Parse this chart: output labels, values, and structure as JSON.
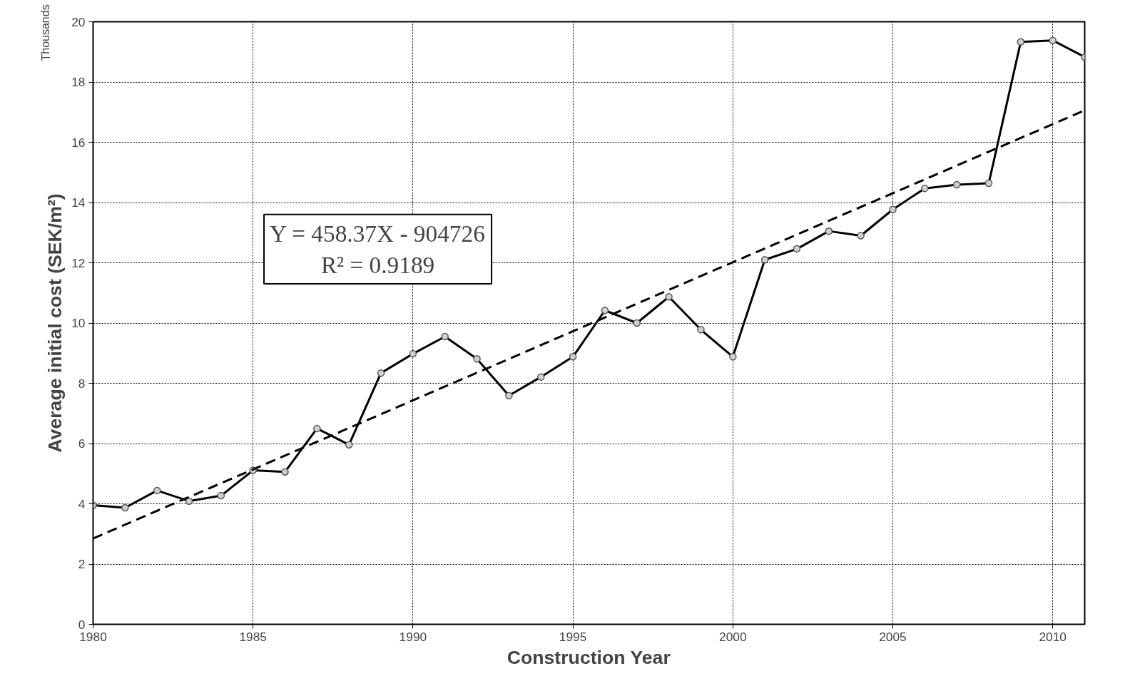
{
  "chart_data": {
    "type": "line",
    "xlabel": "Construction Year",
    "ylabel": "Average initial cost (SEK/m²)",
    "annotations": [
      "Thousands",
      "Y = 458.37X - 904726\nR² = 0.9189"
    ],
    "series": [
      {
        "color": "#000000",
        "marker": "circle",
        "line_style": "solid",
        "x": [
          1980,
          1981,
          1982,
          1983,
          1984,
          1985,
          1986,
          1987,
          1988,
          1989,
          1990,
          1991,
          1992,
          1993,
          1994,
          1995,
          1996,
          1997,
          1998,
          1999,
          2000,
          2001,
          2002,
          2003,
          2004,
          2005,
          2006,
          2007,
          2008,
          2009,
          2010,
          2011
        ],
        "values": [
          3.95,
          3.87,
          4.44,
          4.09,
          4.27,
          5.11,
          5.06,
          6.5,
          5.96,
          8.34,
          8.98,
          9.55,
          8.81,
          7.59,
          8.21,
          8.88,
          10.42,
          10.0,
          10.87,
          9.78,
          8.88,
          12.1,
          12.46,
          13.05,
          12.9,
          13.77,
          14.47,
          14.59,
          14.64,
          19.33,
          19.38,
          18.83
        ]
      },
      {
        "color": "#000000",
        "marker": "none",
        "line_style": "dashed",
        "x": [
          1980,
          2011
        ],
        "values": [
          2.85,
          17.06
        ]
      }
    ],
    "xlim": [
      1980,
      2011
    ],
    "ylim": [
      0,
      20
    ],
    "xticks": [
      1980,
      1985,
      1990,
      1995,
      2000,
      2005,
      2010
    ],
    "yticks": [
      0,
      2,
      4,
      6,
      8,
      10,
      12,
      14,
      16,
      18,
      20
    ],
    "grid": true
  }
}
